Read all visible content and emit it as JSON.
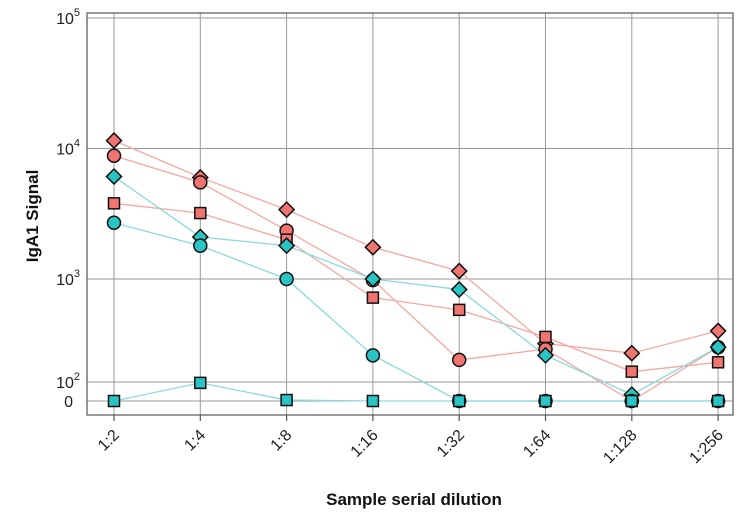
{
  "chart_data": {
    "type": "line",
    "xlabel": "Sample serial dilution",
    "ylabel": "IgA1 Signal",
    "categories": [
      "1:2",
      "1:4",
      "1:8",
      "1:16",
      "1:32",
      "1:64",
      "1:128",
      "1:256"
    ],
    "y_scale": "symlog",
    "ylim": [
      0,
      100000
    ],
    "y_ticks": [
      {
        "value": 0,
        "base": "0",
        "exp": ""
      },
      {
        "value": 100,
        "base": "10",
        "exp": "2"
      },
      {
        "value": 1000,
        "base": "10",
        "exp": "3"
      },
      {
        "value": 10000,
        "base": "10",
        "exp": "4"
      },
      {
        "value": 100000,
        "base": "10",
        "exp": "5"
      }
    ],
    "grid": true,
    "colors": {
      "red": "#f07470",
      "teal": "#2bc4c4",
      "red_line": "#f4a8a4",
      "teal_line": "#8adada",
      "marker_edge": "#111111"
    },
    "series": [
      {
        "color": "red",
        "marker": "diamond",
        "values": [
          11500,
          6000,
          3400,
          1750,
          1150,
          320,
          270,
          400
        ]
      },
      {
        "color": "red",
        "marker": "circle",
        "values": [
          8800,
          5500,
          2350,
          980,
          240,
          290,
          0,
          300
        ]
      },
      {
        "color": "red",
        "marker": "square",
        "values": [
          3800,
          3200,
          2000,
          720,
          580,
          360,
          195,
          230
        ]
      },
      {
        "color": "teal",
        "marker": "diamond",
        "values": [
          6100,
          2100,
          1800,
          1000,
          830,
          260,
          130,
          300
        ]
      },
      {
        "color": "teal",
        "marker": "circle",
        "values": [
          2700,
          1800,
          1000,
          260,
          0,
          0,
          0,
          0
        ]
      },
      {
        "color": "teal",
        "marker": "square",
        "values": [
          0,
          160,
          5,
          0,
          0,
          0,
          0,
          0
        ]
      }
    ]
  }
}
